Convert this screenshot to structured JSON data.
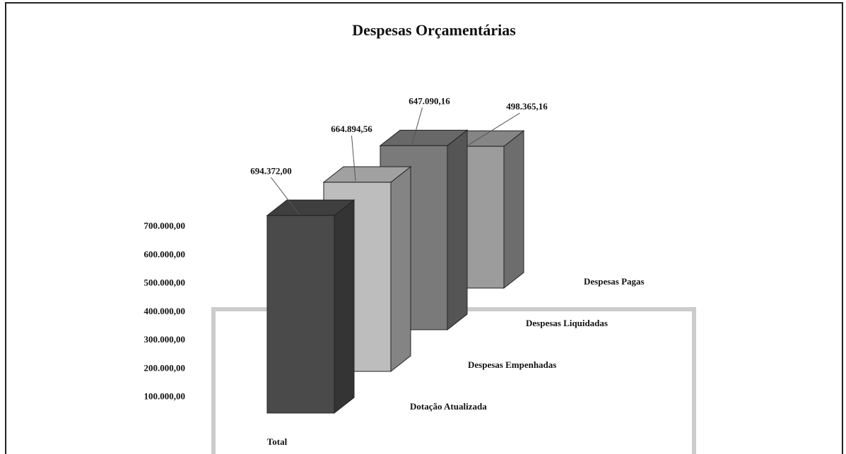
{
  "chart_data": {
    "type": "bar3d",
    "title": "Despesas Orçamentárias",
    "categories": [
      "Total"
    ],
    "series": [
      {
        "name": "Dotação Atualizada",
        "color": "#4a4a4a",
        "values": [
          694372.0
        ],
        "value_labels": [
          "694.372,00"
        ]
      },
      {
        "name": "Despesas Empenhadas",
        "color": "#bdbdbd",
        "values": [
          664894.56
        ],
        "value_labels": [
          "664.894,56"
        ]
      },
      {
        "name": "Despesas Liquidadas",
        "color": "#7a7a7a",
        "values": [
          647090.16
        ],
        "value_labels": [
          "647.090,16"
        ]
      },
      {
        "name": "Despesas Pagas",
        "color": "#9c9c9c",
        "values": [
          498365.16
        ],
        "value_labels": [
          "498.365,16"
        ]
      }
    ],
    "ylim": [
      0,
      700000
    ],
    "yticks": [
      {
        "value": 100000,
        "label": "100.000,00"
      },
      {
        "value": 200000,
        "label": "200.000,00"
      },
      {
        "value": 300000,
        "label": "300.000,00"
      },
      {
        "value": 400000,
        "label": "400.000,00"
      },
      {
        "value": 500000,
        "label": "500.000,00"
      },
      {
        "value": 600000,
        "label": "600.000,00"
      },
      {
        "value": 700000,
        "label": "700.000,00"
      }
    ]
  }
}
